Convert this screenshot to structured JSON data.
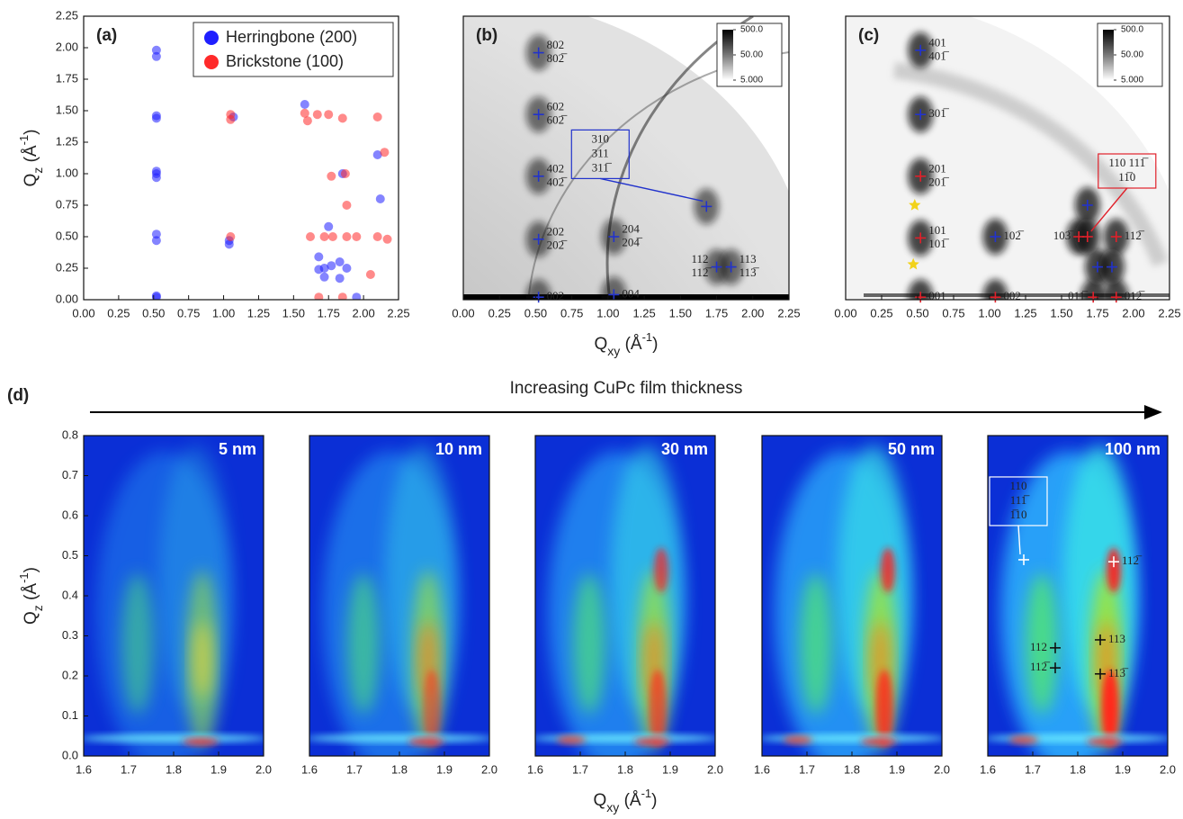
{
  "figure": {
    "panel_label": "(d)",
    "arrow_text": "Increasing CuPc film thickness"
  },
  "chart_data": [
    {
      "type": "scatter",
      "panel_label": "(a)",
      "xlim": [
        0,
        2.25
      ],
      "ylim": [
        0,
        2.25
      ],
      "xticks": [
        {
          "value": 0,
          "label": "0.00"
        },
        0.25,
        {
          "value": 0.5,
          "label": "0.50"
        },
        0.75,
        {
          "value": 1,
          "label": "1.00"
        },
        1.25,
        {
          "value": 1.5,
          "label": "1.50"
        },
        1.75,
        {
          "value": 2,
          "label": "2.00"
        },
        2.25
      ],
      "yticks": [
        {
          "value": 0,
          "label": "0.00"
        },
        0.25,
        {
          "value": 0.5,
          "label": "0.50"
        },
        0.75,
        {
          "value": 1,
          "label": "1.00"
        },
        1.25,
        {
          "value": 1.5,
          "label": "1.50"
        },
        1.75,
        {
          "value": 2,
          "label": "2.00"
        },
        2.25
      ],
      "ylabel": {
        "main": "Q",
        "sub": "z",
        "unit": " (Å",
        "sup": "-1",
        "close": ")"
      },
      "legend": "upper right",
      "series": [
        {
          "name": "Herringbone (200)",
          "color": "#1f1fff",
          "x": [
            0.52,
            0.52,
            0.52,
            0.52,
            0.52,
            0.52,
            0.52,
            0.52,
            0.52,
            0.52,
            0.52,
            1.04,
            1.04,
            1.07,
            1.58,
            1.72,
            1.77,
            1.83,
            1.88,
            1.72,
            1.83,
            1.68,
            1.75,
            1.68,
            1.85,
            2.1,
            2.12,
            1.95
          ],
          "values": [
            0.02,
            0.03,
            0.47,
            0.52,
            0.97,
            1.0,
            1.02,
            1.44,
            1.46,
            1.93,
            1.98,
            0.44,
            0.47,
            1.45,
            1.55,
            0.25,
            0.27,
            0.3,
            0.25,
            0.18,
            0.17,
            0.24,
            0.58,
            0.34,
            1.0,
            1.15,
            0.8,
            0.02
          ]
        },
        {
          "name": "Brickstone (100)",
          "color": "#ff2a2a",
          "x": [
            1.05,
            1.05,
            1.05,
            1.58,
            1.6,
            1.67,
            1.75,
            1.85,
            1.72,
            1.78,
            1.88,
            1.95,
            1.88,
            1.77,
            1.87,
            2.1,
            2.15,
            2.1,
            2.17,
            1.68,
            1.85,
            1.62,
            2.05
          ],
          "values": [
            0.5,
            1.47,
            1.43,
            1.48,
            1.42,
            1.47,
            1.47,
            1.44,
            0.5,
            0.5,
            0.5,
            0.5,
            0.75,
            0.98,
            1.0,
            1.45,
            1.17,
            0.5,
            0.48,
            0.02,
            0.02,
            0.5,
            0.2
          ]
        }
      ]
    },
    {
      "type": "image",
      "panel_label": "(b)",
      "xlim": [
        0,
        2.25
      ],
      "ylim": [
        0,
        2.25
      ],
      "xticks": [
        {
          "value": 0,
          "label": "0.00"
        },
        0.25,
        {
          "value": 0.5,
          "label": "0.50"
        },
        0.75,
        {
          "value": 1,
          "label": "1.00"
        },
        1.25,
        {
          "value": 1.5,
          "label": "1.50"
        },
        1.75,
        {
          "value": 2,
          "label": "2.00"
        },
        2.25
      ],
      "xlabel": {
        "main": "Q",
        "sub": "xy",
        "unit": " (Å",
        "sup": "-1",
        "close": ")"
      },
      "colorbar": {
        "scale": "log",
        "lim": [
          5,
          500
        ],
        "ticks": [
          {
            "value": 500,
            "label": "500.0"
          },
          {
            "value": 50,
            "label": "50.00"
          },
          {
            "value": 5,
            "label": "5.000"
          }
        ]
      },
      "annotations": [
        {
          "x": 0.52,
          "y": 1.96,
          "labels": [
            "802",
            "802̅"
          ],
          "color": "#2233cc",
          "marker_color": "#2233cc"
        },
        {
          "x": 0.52,
          "y": 1.47,
          "labels": [
            "602",
            "602̅"
          ],
          "color": "#2233cc",
          "marker_color": "#2233cc"
        },
        {
          "x": 0.52,
          "y": 0.98,
          "labels": [
            "402",
            "402̅"
          ],
          "color": "#2233cc",
          "marker_color": "#2233cc"
        },
        {
          "x": 0.52,
          "y": 0.48,
          "labels": [
            "202",
            "202̅"
          ],
          "color": "#2233cc",
          "marker_color": "#2233cc"
        },
        {
          "x": 1.04,
          "y": 0.5,
          "labels": [
            "204",
            "204̅"
          ],
          "color": "#2233cc",
          "marker_color": "#2233cc"
        },
        {
          "x": 0.52,
          "y": 0.02,
          "labels": [
            "002"
          ],
          "color": "#2233cc",
          "marker_color": "#2233cc"
        },
        {
          "x": 1.04,
          "y": 0.04,
          "labels": [
            "004"
          ],
          "color": "#2233cc",
          "marker_color": "#2233cc"
        },
        {
          "x": 1.75,
          "y": 0.26,
          "labels": [
            "112",
            "112̅"
          ],
          "color": "#2233cc",
          "marker_color": "#2233cc"
        },
        {
          "x": 1.85,
          "y": 0.26,
          "labels": [
            "113",
            "113̅"
          ],
          "color": "#2233cc",
          "marker_color": "#2233cc"
        },
        {
          "x": 1.68,
          "y": 0.74,
          "labels": [
            "310",
            "311",
            "311̅"
          ],
          "box": true,
          "color": "#2233cc",
          "marker_color": "#2233cc"
        }
      ]
    },
    {
      "type": "image",
      "panel_label": "(c)",
      "xlim": [
        0,
        2.25
      ],
      "ylim": [
        0,
        2.25
      ],
      "xticks": [
        {
          "value": 0,
          "label": "0.00"
        },
        0.25,
        {
          "value": 0.5,
          "label": "0.50"
        },
        0.75,
        {
          "value": 1,
          "label": "1.00"
        },
        1.25,
        {
          "value": 1.5,
          "label": "1.50"
        },
        1.75,
        {
          "value": 2,
          "label": "2.00"
        },
        2.25
      ],
      "colorbar": {
        "scale": "log",
        "lim": [
          5,
          500
        ],
        "ticks": [
          {
            "value": 500,
            "label": "500.0"
          },
          {
            "value": 50,
            "label": "50.00"
          },
          {
            "value": 5,
            "label": "5.000"
          }
        ]
      },
      "annotations": [
        {
          "x": 0.52,
          "y": 1.98,
          "labels": [
            "401",
            "401̅"
          ],
          "color": "#e0202a",
          "marker_color": "#2233cc"
        },
        {
          "x": 0.52,
          "y": 1.47,
          "labels": [
            "301̅"
          ],
          "color": "#e0202a",
          "marker_color": "#2233cc"
        },
        {
          "x": 0.52,
          "y": 0.98,
          "labels": [
            "201",
            "201̅"
          ],
          "color": "#e0202a",
          "marker_color": "#e0202a"
        },
        {
          "x": 0.52,
          "y": 0.49,
          "labels": [
            "101",
            "101̅"
          ],
          "color": "#e0202a",
          "marker_color": "#e0202a"
        },
        {
          "x": 1.04,
          "y": 0.5,
          "labels": [
            "102̅"
          ],
          "color": "#e0202a",
          "marker_color": "#2233cc"
        },
        {
          "x": 0.52,
          "y": 0.02,
          "labels": [
            "001"
          ],
          "color": "#e0202a",
          "marker_color": "#e0202a"
        },
        {
          "x": 1.04,
          "y": 0.02,
          "labels": [
            "002"
          ],
          "color": "#e0202a",
          "marker_color": "#e0202a"
        },
        {
          "x": 1.62,
          "y": 0.5,
          "labels": [
            "103̅"
          ],
          "color": "#e0202a",
          "marker_color": "#e0202a"
        },
        {
          "x": 1.88,
          "y": 0.5,
          "labels": [
            "112̅"
          ],
          "color": "#e0202a",
          "marker_color": "#e0202a"
        },
        {
          "x": 1.72,
          "y": 0.02,
          "labels": [
            "011̅"
          ],
          "color": "#e0202a",
          "marker_color": "#e0202a"
        },
        {
          "x": 1.88,
          "y": 0.02,
          "labels": [
            "012̅"
          ],
          "color": "#e0202a",
          "marker_color": "#e0202a"
        },
        {
          "x": 1.68,
          "y": 0.75,
          "color": "#2233cc",
          "marker_color": "#2233cc"
        },
        {
          "x": 1.75,
          "y": 0.26,
          "color": "#2233cc",
          "marker_color": "#2233cc"
        },
        {
          "x": 1.85,
          "y": 0.26,
          "color": "#2233cc",
          "marker_color": "#2233cc"
        },
        {
          "x": 0.48,
          "y": 0.75,
          "marker": "star",
          "color": "#f2d21a",
          "marker_color": "#f2d21a"
        },
        {
          "x": 0.47,
          "y": 0.28,
          "marker": "star",
          "color": "#f2d21a",
          "marker_color": "#f2d21a"
        },
        {
          "x": 1.68,
          "y": 0.5,
          "labels": [
            "110 111̅",
            "11̅0"
          ],
          "box": true,
          "color": "#e0202a",
          "marker_color": "#e0202a"
        }
      ]
    },
    {
      "type": "heatmap",
      "label": "5 nm",
      "xlim": [
        1.6,
        2.0
      ],
      "ylim": [
        0,
        0.8
      ],
      "xticks": [
        1.6,
        1.7,
        1.8,
        1.9,
        {
          "value": 2,
          "label": "2.0"
        }
      ],
      "yticks": [
        {
          "value": 0,
          "label": "0.0"
        },
        0.1,
        0.2,
        0.3,
        0.4,
        0.5,
        0.6,
        0.7,
        0.8
      ],
      "ylabel": {
        "main": "Q",
        "sub": "z",
        "unit": " (Å",
        "sup": "-1",
        "close": ")"
      }
    },
    {
      "type": "heatmap",
      "label": "10 nm",
      "xlim": [
        1.6,
        2.0
      ],
      "ylim": [
        0,
        0.8
      ],
      "xticks": [
        1.6,
        1.7,
        1.8,
        1.9,
        {
          "value": 2,
          "label": "2.0"
        }
      ]
    },
    {
      "type": "heatmap",
      "label": "30 nm",
      "xlim": [
        1.6,
        2.0
      ],
      "ylim": [
        0,
        0.8
      ],
      "xticks": [
        1.6,
        1.7,
        1.8,
        1.9,
        {
          "value": 2,
          "label": "2.0"
        }
      ],
      "xlabel": {
        "main": "Q",
        "sub": "xy",
        "unit": " (Å",
        "sup": "-1",
        "close": ")"
      }
    },
    {
      "type": "heatmap",
      "label": "50 nm",
      "xlim": [
        1.6,
        2.0
      ],
      "ylim": [
        0,
        0.8
      ],
      "xticks": [
        1.6,
        1.7,
        1.8,
        1.9,
        {
          "value": 2,
          "label": "2.0"
        }
      ]
    },
    {
      "type": "heatmap",
      "label": "100 nm",
      "xlim": [
        1.6,
        2.0
      ],
      "ylim": [
        0,
        0.8
      ],
      "xticks": [
        1.6,
        1.7,
        1.8,
        1.9,
        {
          "value": 2,
          "label": "2.0"
        }
      ],
      "annotations": [
        {
          "x": 1.68,
          "y": 0.49,
          "labels": [
            "110",
            "111̅",
            "1̅10"
          ],
          "box": true,
          "color": "#ffffff",
          "marker_color": "#ffffff"
        },
        {
          "x": 1.88,
          "y": 0.485,
          "labels": [
            "112̅"
          ],
          "color": "#222222",
          "marker_color": "#ffffff"
        },
        {
          "x": 1.75,
          "y": 0.27,
          "labels": [
            "112"
          ],
          "color": "#111111",
          "marker_color": "#111111"
        },
        {
          "x": 1.75,
          "y": 0.22,
          "labels": [
            "112̅"
          ],
          "color": "#111111",
          "marker_color": "#111111"
        },
        {
          "x": 1.85,
          "y": 0.29,
          "labels": [
            "113"
          ],
          "color": "#111111",
          "marker_color": "#111111"
        },
        {
          "x": 1.85,
          "y": 0.205,
          "labels": [
            "113̅"
          ],
          "color": "#111111",
          "marker_color": "#111111"
        }
      ]
    }
  ]
}
